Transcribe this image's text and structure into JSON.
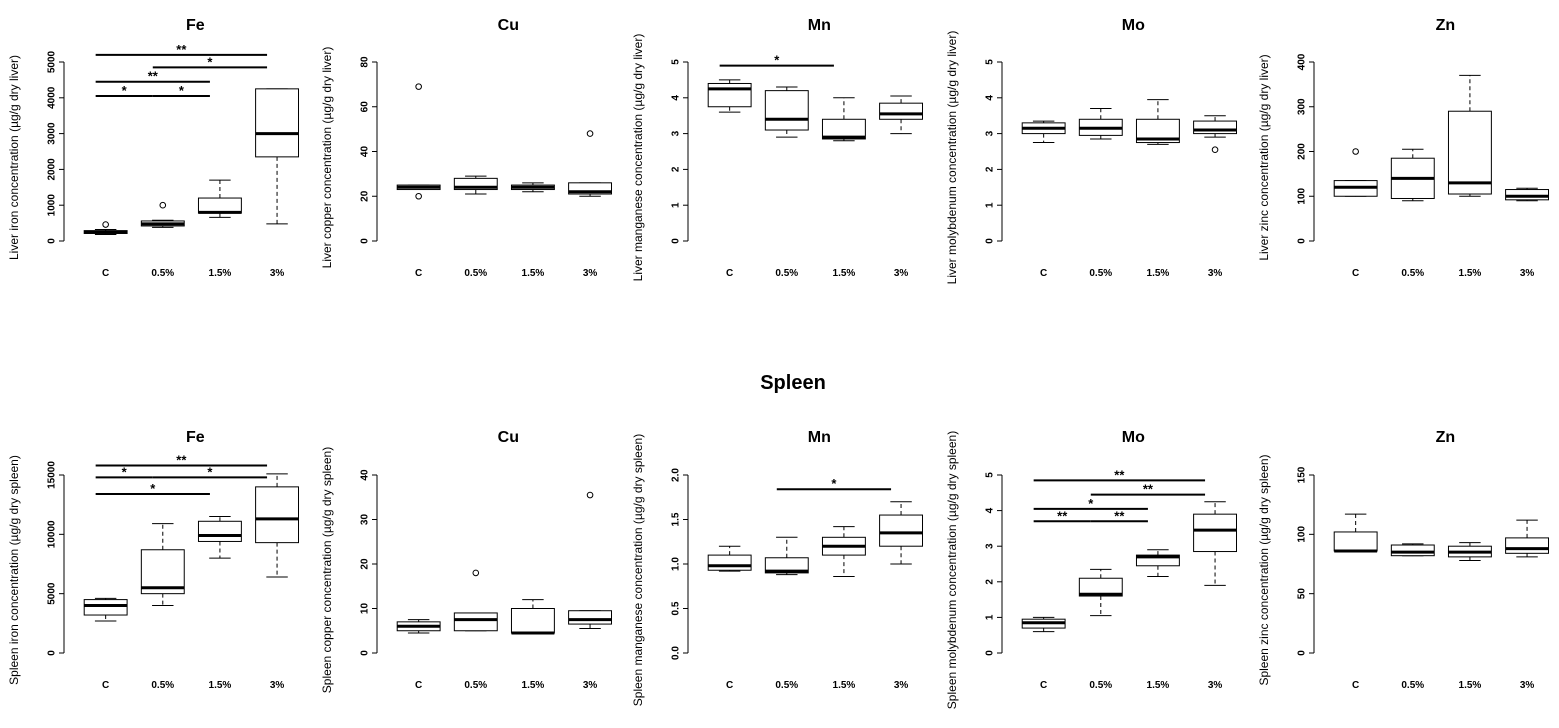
{
  "section_title": "Spleen",
  "chart_data": [
    {
      "type": "box",
      "panel": "liver-fe",
      "title": "Fe",
      "ylabel": "Liver iron concentration (µg/g dry liver)",
      "ylim": [
        0,
        5000
      ],
      "yticks": [
        0,
        1000,
        2000,
        3000,
        4000,
        5000
      ],
      "categories": [
        "C",
        "0.5%",
        "1.5%",
        "3%"
      ],
      "boxes": [
        {
          "min": 180,
          "q1": 210,
          "median": 250,
          "q3": 290,
          "max": 320,
          "outliers": [
            460
          ]
        },
        {
          "min": 380,
          "q1": 420,
          "median": 480,
          "q3": 560,
          "max": 580,
          "outliers": [
            1000
          ]
        },
        {
          "min": 660,
          "q1": 780,
          "median": 800,
          "q3": 1200,
          "max": 1700,
          "outliers": []
        },
        {
          "min": 480,
          "q1": 2350,
          "median": 3000,
          "q3": 4250,
          "max": 4250,
          "outliers": []
        }
      ],
      "significance": [
        {
          "from": 0,
          "to": 3,
          "label": "**",
          "y": 5200
        },
        {
          "from": 1,
          "to": 3,
          "label": "*",
          "y": 4850
        },
        {
          "from": 0,
          "to": 2,
          "label": "**",
          "y": 4450
        },
        {
          "from": 0,
          "to": 1,
          "label": "*",
          "y": 4050
        },
        {
          "from": 1,
          "to": 2,
          "label": "*",
          "y": 4050
        }
      ]
    },
    {
      "type": "box",
      "panel": "liver-cu",
      "title": "Cu",
      "ylabel": "Liver copper concentration (µg/g dry liver)",
      "ylim": [
        0,
        80
      ],
      "yticks": [
        0,
        20,
        40,
        60,
        80
      ],
      "categories": [
        "C",
        "0.5%",
        "1.5%",
        "3%"
      ],
      "boxes": [
        {
          "min": 23,
          "q1": 23,
          "median": 24,
          "q3": 25,
          "max": 25,
          "outliers": [
            69,
            20
          ]
        },
        {
          "min": 21,
          "q1": 23,
          "median": 24,
          "q3": 28,
          "max": 29,
          "outliers": []
        },
        {
          "min": 22,
          "q1": 23,
          "median": 24,
          "q3": 25,
          "max": 26,
          "outliers": []
        },
        {
          "min": 20,
          "q1": 21,
          "median": 22,
          "q3": 26,
          "max": 26,
          "outliers": [
            48
          ]
        }
      ],
      "significance": []
    },
    {
      "type": "box",
      "panel": "liver-mn",
      "title": "Mn",
      "ylabel": "Liver manganese concentration (µg/g dry liver)",
      "ylim": [
        0,
        5
      ],
      "yticks": [
        0,
        1,
        2,
        3,
        4,
        5
      ],
      "categories": [
        "C",
        "0.5%",
        "1.5%",
        "3%"
      ],
      "boxes": [
        {
          "min": 3.6,
          "q1": 3.75,
          "median": 4.25,
          "q3": 4.4,
          "max": 4.5,
          "outliers": []
        },
        {
          "min": 2.9,
          "q1": 3.1,
          "median": 3.4,
          "q3": 4.2,
          "max": 4.3,
          "outliers": []
        },
        {
          "min": 2.8,
          "q1": 2.85,
          "median": 2.9,
          "q3": 3.4,
          "max": 4.0,
          "outliers": []
        },
        {
          "min": 3.0,
          "q1": 3.4,
          "median": 3.55,
          "q3": 3.85,
          "max": 4.05,
          "outliers": []
        }
      ],
      "significance": [
        {
          "from": 0,
          "to": 2,
          "label": "*",
          "y": 4.9
        }
      ]
    },
    {
      "type": "box",
      "panel": "liver-mo",
      "title": "Mo",
      "ylabel": "Liver molybdenum concentration (µg/g dry liver)",
      "ylim": [
        0,
        5
      ],
      "yticks": [
        0,
        1,
        2,
        3,
        4,
        5
      ],
      "categories": [
        "C",
        "0.5%",
        "1.5%",
        "3%"
      ],
      "boxes": [
        {
          "min": 2.75,
          "q1": 3.0,
          "median": 3.15,
          "q3": 3.3,
          "max": 3.35,
          "outliers": []
        },
        {
          "min": 2.85,
          "q1": 2.95,
          "median": 3.15,
          "q3": 3.4,
          "max": 3.7,
          "outliers": []
        },
        {
          "min": 2.7,
          "q1": 2.75,
          "median": 2.85,
          "q3": 3.4,
          "max": 3.95,
          "outliers": []
        },
        {
          "min": 2.9,
          "q1": 3.0,
          "median": 3.1,
          "q3": 3.35,
          "max": 3.5,
          "outliers": [
            2.55
          ]
        }
      ],
      "significance": []
    },
    {
      "type": "box",
      "panel": "liver-zn",
      "title": "Zn",
      "ylabel": "Liver zinc concentration (µg/g dry liver)",
      "ylim": [
        0,
        400
      ],
      "yticks": [
        0,
        100,
        200,
        300,
        400
      ],
      "categories": [
        "C",
        "0.5%",
        "1.5%",
        "3%"
      ],
      "boxes": [
        {
          "min": 100,
          "q1": 100,
          "median": 120,
          "q3": 135,
          "max": 135,
          "outliers": [
            200
          ]
        },
        {
          "min": 90,
          "q1": 95,
          "median": 140,
          "q3": 185,
          "max": 205,
          "outliers": []
        },
        {
          "min": 100,
          "q1": 105,
          "median": 130,
          "q3": 290,
          "max": 370,
          "outliers": []
        },
        {
          "min": 90,
          "q1": 92,
          "median": 100,
          "q3": 115,
          "max": 118,
          "outliers": []
        }
      ],
      "significance": []
    },
    {
      "type": "box",
      "panel": "spleen-fe",
      "title": "Fe",
      "ylabel": "Spleen iron concentration (µg/g dry spleen)",
      "ylim": [
        0,
        15000
      ],
      "yticks": [
        0,
        5000,
        10000,
        15000
      ],
      "categories": [
        "C",
        "0.5%",
        "1.5%",
        "3%"
      ],
      "boxes": [
        {
          "min": 2700,
          "q1": 3200,
          "median": 4000,
          "q3": 4500,
          "max": 4600,
          "outliers": []
        },
        {
          "min": 4000,
          "q1": 5000,
          "median": 5500,
          "q3": 8700,
          "max": 10900,
          "outliers": []
        },
        {
          "min": 8000,
          "q1": 9400,
          "median": 9900,
          "q3": 11100,
          "max": 11500,
          "outliers": []
        },
        {
          "min": 6400,
          "q1": 9300,
          "median": 11300,
          "q3": 14000,
          "max": 15100,
          "outliers": []
        }
      ],
      "significance": [
        {
          "from": 0,
          "to": 3,
          "label": "**",
          "y": 15800
        },
        {
          "from": 0,
          "to": 1,
          "label": "*",
          "y": 14800
        },
        {
          "from": 1,
          "to": 3,
          "label": "*",
          "y": 14800
        },
        {
          "from": 0,
          "to": 2,
          "label": "*",
          "y": 13400
        }
      ]
    },
    {
      "type": "box",
      "panel": "spleen-cu",
      "title": "Cu",
      "ylabel": "Spleen copper concentration (µg/g dry spleen)",
      "ylim": [
        0,
        40
      ],
      "yticks": [
        0,
        10,
        20,
        30,
        40
      ],
      "categories": [
        "C",
        "0.5%",
        "1.5%",
        "3%"
      ],
      "boxes": [
        {
          "min": 4.5,
          "q1": 5,
          "median": 6,
          "q3": 7,
          "max": 7.5,
          "outliers": []
        },
        {
          "min": 5,
          "q1": 5,
          "median": 7.5,
          "q3": 9,
          "max": 9,
          "outliers": [
            18
          ]
        },
        {
          "min": 4.5,
          "q1": 4.5,
          "median": 4.5,
          "q3": 10,
          "max": 12,
          "outliers": []
        },
        {
          "min": 5.5,
          "q1": 6.5,
          "median": 7.5,
          "q3": 9.5,
          "max": 9.5,
          "outliers": [
            35.5
          ]
        }
      ],
      "significance": []
    },
    {
      "type": "box",
      "panel": "spleen-mn",
      "title": "Mn",
      "ylabel": "Spleen manganese concentration (µg/g dry spleen)",
      "ylim": [
        0,
        2
      ],
      "yticks": [
        0.0,
        0.5,
        1.0,
        1.5,
        2.0
      ],
      "categories": [
        "C",
        "0.5%",
        "1.5%",
        "3%"
      ],
      "boxes": [
        {
          "min": 0.92,
          "q1": 0.93,
          "median": 0.98,
          "q3": 1.1,
          "max": 1.2,
          "outliers": []
        },
        {
          "min": 0.88,
          "q1": 0.9,
          "median": 0.92,
          "q3": 1.07,
          "max": 1.3,
          "outliers": []
        },
        {
          "min": 0.86,
          "q1": 1.1,
          "median": 1.2,
          "q3": 1.3,
          "max": 1.42,
          "outliers": []
        },
        {
          "min": 1.0,
          "q1": 1.2,
          "median": 1.35,
          "q3": 1.55,
          "max": 1.7,
          "outliers": []
        }
      ],
      "significance": [
        {
          "from": 1,
          "to": 3,
          "label": "*",
          "y": 1.84
        }
      ]
    },
    {
      "type": "box",
      "panel": "spleen-mo",
      "title": "Mo",
      "ylabel": "Spleen molybdenum concentration (µg/g dry spleen)",
      "ylim": [
        0,
        5
      ],
      "yticks": [
        0,
        1,
        2,
        3,
        4,
        5
      ],
      "categories": [
        "C",
        "0.5%",
        "1.5%",
        "3%"
      ],
      "boxes": [
        {
          "min": 0.6,
          "q1": 0.7,
          "median": 0.85,
          "q3": 0.95,
          "max": 1.0,
          "outliers": []
        },
        {
          "min": 1.05,
          "q1": 1.6,
          "median": 1.65,
          "q3": 2.1,
          "max": 2.35,
          "outliers": []
        },
        {
          "min": 2.15,
          "q1": 2.45,
          "median": 2.7,
          "q3": 2.75,
          "max": 2.9,
          "outliers": []
        },
        {
          "min": 1.9,
          "q1": 2.85,
          "median": 3.45,
          "q3": 3.9,
          "max": 4.25,
          "outliers": []
        }
      ],
      "significance": [
        {
          "from": 0,
          "to": 3,
          "label": "**",
          "y": 4.85
        },
        {
          "from": 1,
          "to": 3,
          "label": "**",
          "y": 4.45
        },
        {
          "from": 0,
          "to": 2,
          "label": "*",
          "y": 4.05
        },
        {
          "from": 0,
          "to": 1,
          "label": "**",
          "y": 3.7
        },
        {
          "from": 1,
          "to": 2,
          "label": "**",
          "y": 3.7
        }
      ]
    },
    {
      "type": "box",
      "panel": "spleen-zn",
      "title": "Zn",
      "ylabel": "Spleen zinc concentration (µg/g dry spleen)",
      "ylim": [
        0,
        150
      ],
      "yticks": [
        0,
        50,
        100,
        150
      ],
      "categories": [
        "C",
        "0.5%",
        "1.5%",
        "3%"
      ],
      "boxes": [
        {
          "min": 86,
          "q1": 86,
          "median": 86,
          "q3": 102,
          "max": 117,
          "outliers": []
        },
        {
          "min": 82,
          "q1": 82,
          "median": 85,
          "q3": 91,
          "max": 92,
          "outliers": []
        },
        {
          "min": 78,
          "q1": 81,
          "median": 85,
          "q3": 90,
          "max": 93,
          "outliers": []
        },
        {
          "min": 81,
          "q1": 84,
          "median": 88,
          "q3": 97,
          "max": 112,
          "outliers": []
        }
      ],
      "significance": []
    }
  ]
}
